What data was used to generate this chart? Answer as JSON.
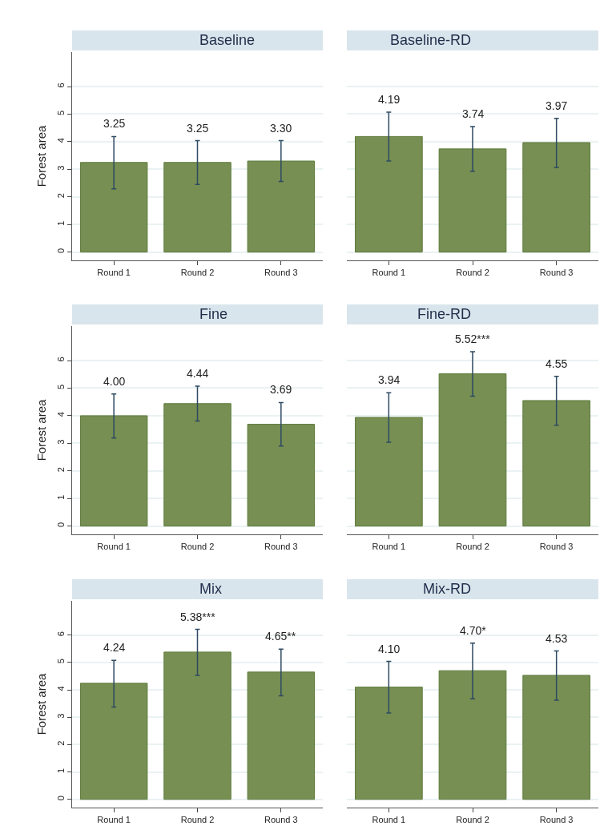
{
  "chart_data": [
    {
      "type": "bar",
      "title": "Baseline",
      "ylabel": "Forest area",
      "categories": [
        "Round 1",
        "Round 2",
        "Round 3"
      ],
      "values": [
        3.25,
        3.25,
        3.3
      ],
      "errors": [
        [
          2.29,
          4.19
        ],
        [
          2.45,
          4.04
        ],
        [
          2.56,
          4.04
        ]
      ],
      "value_labels": [
        "3.25",
        "3.25",
        "3.30"
      ],
      "color": "#778f52",
      "ylim": [
        -0.3,
        7.25
      ],
      "yticks": [
        0,
        1,
        2,
        3,
        4,
        5,
        6
      ],
      "grid": "y"
    },
    {
      "type": "bar",
      "title": "Baseline-RD",
      "categories": [
        "Round 1",
        "Round 2",
        "Round 3"
      ],
      "values": [
        4.19,
        3.74,
        3.97
      ],
      "errors": [
        [
          3.3,
          5.07
        ],
        [
          2.93,
          4.55
        ],
        [
          3.07,
          4.85
        ]
      ],
      "value_labels": [
        "4.19",
        "3.74",
        "3.97"
      ],
      "color": "#778f52",
      "yticks": [
        0,
        1,
        2,
        3,
        4,
        5,
        6
      ],
      "grid": "y",
      "tick_labels": "x"
    },
    {
      "type": "bar",
      "title": "Fine",
      "ylabel": "Forest area",
      "categories": [
        "Round 1",
        "Round 2",
        "Round 3"
      ],
      "values": [
        4.0,
        4.44,
        3.69
      ],
      "errors": [
        [
          3.19,
          4.79
        ],
        [
          3.81,
          5.07
        ],
        [
          2.9,
          4.48
        ]
      ],
      "value_labels": [
        "4.00",
        "4.44",
        "3.69"
      ],
      "color": "#778f52",
      "ylim": [
        -0.3,
        7.25
      ],
      "yticks": [
        0,
        1,
        2,
        3,
        4,
        5,
        6
      ],
      "grid": "y"
    },
    {
      "type": "bar",
      "title": "Fine-RD",
      "categories": [
        "Round 1",
        "Round 2",
        "Round 3"
      ],
      "values": [
        3.94,
        5.52,
        4.55
      ],
      "errors": [
        [
          3.04,
          4.83
        ],
        [
          4.71,
          6.32
        ],
        [
          3.66,
          5.43
        ]
      ],
      "value_labels": [
        "3.94",
        "5.52***",
        "4.55"
      ],
      "color": "#778f52",
      "yticks": [
        0,
        1,
        2,
        3,
        4,
        5,
        6
      ],
      "grid": "y",
      "tick_labels": "x"
    },
    {
      "type": "bar",
      "title": "Mix",
      "ylabel": "Forest area",
      "categories": [
        "Round 1",
        "Round 2",
        "Round 3"
      ],
      "values": [
        4.24,
        5.38,
        4.65
      ],
      "errors": [
        [
          3.37,
          5.08
        ],
        [
          4.53,
          6.21
        ],
        [
          3.78,
          5.49
        ]
      ],
      "value_labels": [
        "4.24",
        "5.38***",
        "4.65**"
      ],
      "color": "#778f52",
      "ylim": [
        -0.3,
        7.25
      ],
      "yticks": [
        0,
        1,
        2,
        3,
        4,
        5,
        6
      ],
      "grid": "y"
    },
    {
      "type": "bar",
      "title": "Mix-RD",
      "categories": [
        "Round 1",
        "Round 2",
        "Round 3"
      ],
      "values": [
        4.1,
        4.7,
        4.53
      ],
      "errors": [
        [
          3.15,
          5.04
        ],
        [
          3.67,
          5.71
        ],
        [
          3.62,
          5.42
        ]
      ],
      "value_labels": [
        "4.10",
        "4.70*",
        "4.53"
      ],
      "color": "#778f52",
      "yticks": [
        0,
        1,
        2,
        3,
        4,
        5,
        6
      ],
      "grid": "y",
      "tick_labels": "x"
    }
  ]
}
